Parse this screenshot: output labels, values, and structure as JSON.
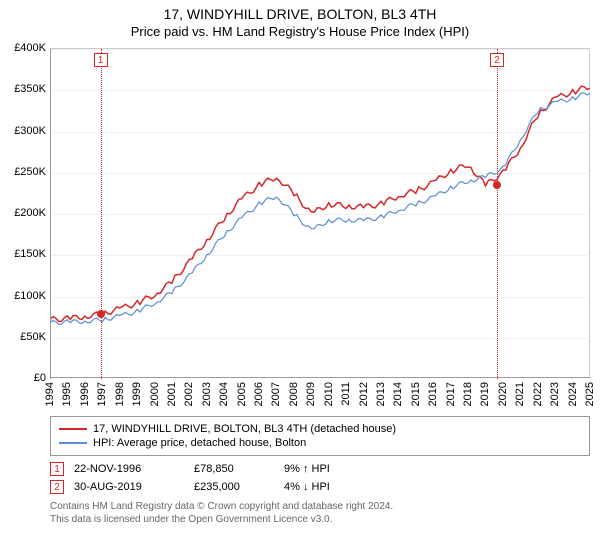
{
  "title_main": "17, WINDYHILL DRIVE, BOLTON, BL3 4TH",
  "title_sub": "Price paid vs. HM Land Registry's House Price Index (HPI)",
  "chart": {
    "type": "line",
    "ylim": [
      0,
      400000
    ],
    "ytick_step": 50000,
    "yticks": [
      "£0",
      "£50K",
      "£100K",
      "£150K",
      "£200K",
      "£250K",
      "£300K",
      "£350K",
      "£400K"
    ],
    "xlim": [
      1994,
      2025
    ],
    "xticks": [
      "1994",
      "1995",
      "1996",
      "1997",
      "1998",
      "1999",
      "2000",
      "2001",
      "2002",
      "2003",
      "2004",
      "2005",
      "2006",
      "2007",
      "2008",
      "2009",
      "2010",
      "2011",
      "2012",
      "2013",
      "2014",
      "2015",
      "2016",
      "2017",
      "2018",
      "2019",
      "2020",
      "2021",
      "2022",
      "2023",
      "2024",
      "2025"
    ],
    "background_color": "#ffffff",
    "grid_color": "#f0f0f0",
    "axis_color": "#999999",
    "series": [
      {
        "name": "price_paid",
        "label": "17, WINDYHILL DRIVE, BOLTON, BL3 4TH (detached house)",
        "color": "#d62728",
        "line_width": 1.5,
        "x": [
          1994,
          1995,
          1996,
          1997,
          1998,
          1999,
          2000,
          2001,
          2002,
          2003,
          2004,
          2005,
          2006,
          2007,
          2008,
          2009,
          2010,
          2011,
          2012,
          2013,
          2014,
          2015,
          2016,
          2017,
          2018,
          2019,
          2020,
          2021,
          2022,
          2023,
          2024,
          2025
        ],
        "y": [
          72000,
          73000,
          76000,
          78850,
          85000,
          92000,
          102000,
          118000,
          142000,
          168000,
          195000,
          218000,
          235000,
          245000,
          225000,
          200000,
          212000,
          210000,
          208000,
          212000,
          222000,
          228000,
          238000,
          252000,
          260000,
          235000,
          250000,
          280000,
          320000,
          340000,
          348000,
          355000
        ]
      },
      {
        "name": "hpi",
        "label": "HPI: Average price, detached house, Bolton",
        "color": "#5a8fd6",
        "line_width": 1.2,
        "x": [
          1994,
          1995,
          1996,
          1997,
          1998,
          1999,
          2000,
          2001,
          2002,
          2003,
          2004,
          2005,
          2006,
          2007,
          2008,
          2009,
          2010,
          2011,
          2012,
          2013,
          2014,
          2015,
          2016,
          2017,
          2018,
          2019,
          2020,
          2021,
          2022,
          2023,
          2024,
          2025
        ],
        "y": [
          68000,
          69000,
          70000,
          72000,
          76000,
          82000,
          92000,
          105000,
          125000,
          150000,
          175000,
          195000,
          212000,
          222000,
          200000,
          180000,
          192000,
          193000,
          192000,
          196000,
          205000,
          212000,
          220000,
          232000,
          240000,
          245000,
          255000,
          290000,
          325000,
          335000,
          340000,
          348000
        ]
      }
    ],
    "sale_markers": [
      {
        "n": "1",
        "year": 1996.9,
        "price": 78850,
        "color": "#d62728"
      },
      {
        "n": "2",
        "year": 2019.66,
        "price": 235000,
        "color": "#d62728"
      }
    ]
  },
  "legend": {
    "rows": [
      {
        "color": "#d62728",
        "label": "17, WINDYHILL DRIVE, BOLTON, BL3 4TH (detached house)"
      },
      {
        "color": "#5a8fd6",
        "label": "HPI: Average price, detached house, Bolton"
      }
    ]
  },
  "sales": [
    {
      "n": "1",
      "date": "22-NOV-1996",
      "price": "£78,850",
      "pct": "9% ↑ HPI",
      "color": "#d62728"
    },
    {
      "n": "2",
      "date": "30-AUG-2019",
      "price": "£235,000",
      "pct": "4% ↓ HPI",
      "color": "#d62728"
    }
  ],
  "copyright": {
    "line1": "Contains HM Land Registry data © Crown copyright and database right 2024.",
    "line2": "This data is licensed under the Open Government Licence v3.0."
  },
  "style": {
    "title_fontsize": 14,
    "subtitle_fontsize": 13,
    "axis_fontsize": 11,
    "legend_fontsize": 11,
    "copyright_fontsize": 10,
    "copyright_color": "#666666"
  }
}
